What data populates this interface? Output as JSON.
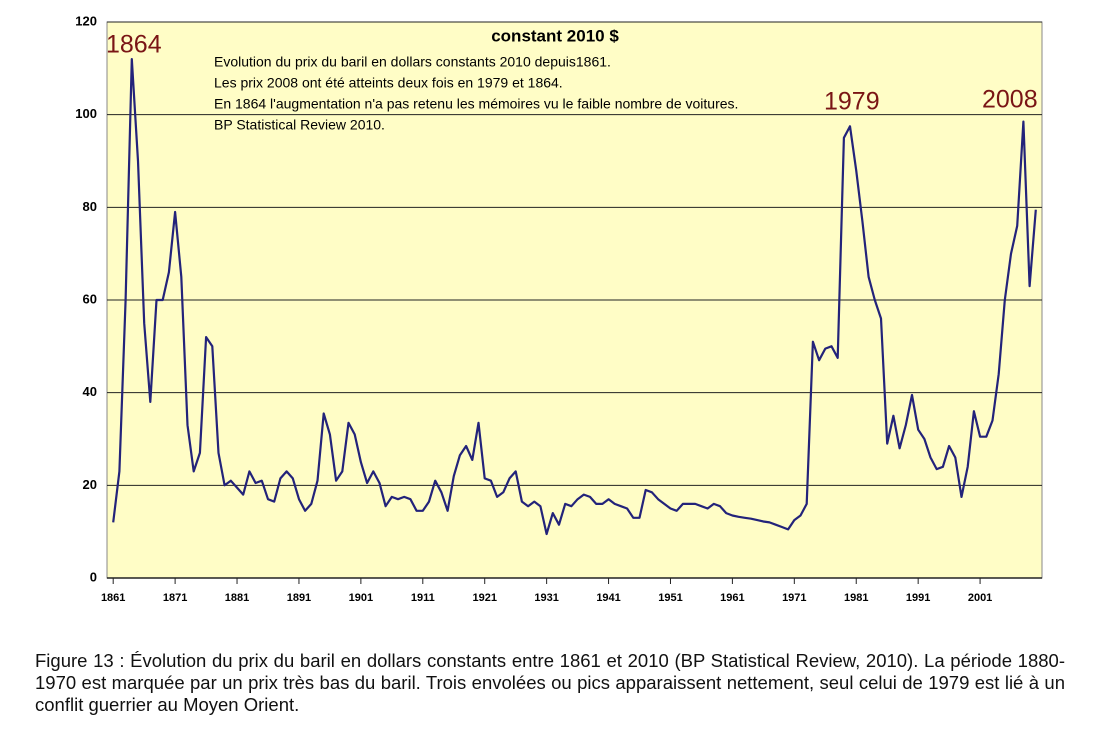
{
  "chart_data": {
    "type": "line",
    "title": "constant 2010 $",
    "annotations": [
      "Evolution du prix du baril en dollars constants 2010 depuis1861.",
      "Les prix 2008 ont été atteints deux fois en 1979 et 1864.",
      "En 1864 l'augmentation n'a pas retenu les mémoires vu le faible nombre de voitures.",
      "BP Statistical Review 2010."
    ],
    "peak_labels": [
      "1864",
      "1979",
      "2008"
    ],
    "x": [
      1861,
      1862,
      1863,
      1864,
      1865,
      1866,
      1867,
      1868,
      1869,
      1870,
      1871,
      1872,
      1873,
      1874,
      1875,
      1876,
      1877,
      1878,
      1879,
      1880,
      1881,
      1882,
      1883,
      1884,
      1885,
      1886,
      1887,
      1888,
      1889,
      1890,
      1891,
      1892,
      1893,
      1894,
      1895,
      1896,
      1897,
      1898,
      1899,
      1900,
      1901,
      1902,
      1903,
      1904,
      1905,
      1906,
      1907,
      1908,
      1909,
      1910,
      1911,
      1912,
      1913,
      1914,
      1915,
      1916,
      1917,
      1918,
      1919,
      1920,
      1921,
      1922,
      1923,
      1924,
      1925,
      1926,
      1927,
      1928,
      1929,
      1930,
      1931,
      1932,
      1933,
      1934,
      1935,
      1936,
      1937,
      1938,
      1939,
      1940,
      1941,
      1942,
      1943,
      1944,
      1945,
      1946,
      1947,
      1948,
      1949,
      1950,
      1951,
      1952,
      1953,
      1954,
      1955,
      1956,
      1957,
      1958,
      1959,
      1960,
      1961,
      1962,
      1963,
      1964,
      1965,
      1966,
      1967,
      1968,
      1969,
      1970,
      1971,
      1972,
      1973,
      1974,
      1975,
      1976,
      1977,
      1978,
      1979,
      1980,
      1981,
      1982,
      1983,
      1984,
      1985,
      1986,
      1987,
      1988,
      1989,
      1990,
      1991,
      1992,
      1993,
      1994,
      1995,
      1996,
      1997,
      1998,
      1999,
      2000,
      2001,
      2002,
      2003,
      2004,
      2005,
      2006,
      2007,
      2008,
      2009,
      2010
    ],
    "series": [
      {
        "name": "prix du baril",
        "color": "#23237a",
        "values": [
          12,
          23,
          60,
          112,
          90,
          55,
          38,
          60,
          60,
          66,
          79,
          65,
          33,
          23,
          27,
          52,
          50,
          27,
          20,
          21,
          19.5,
          18,
          23,
          20.5,
          21,
          17,
          16.5,
          21.5,
          23,
          21.5,
          17,
          14.5,
          16,
          21,
          35.5,
          31,
          21,
          23,
          33.5,
          31,
          25,
          20.5,
          23,
          20.5,
          15.5,
          17.5,
          17,
          17.5,
          17,
          14.5,
          14.5,
          16.5,
          21,
          18.5,
          14.5,
          22,
          26.5,
          28.5,
          25.5,
          33.5,
          21.5,
          21,
          17.5,
          18.5,
          21.5,
          23,
          16.5,
          15.5,
          16.5,
          15.5,
          9.5,
          14,
          11.5,
          16,
          15.5,
          17,
          18,
          17.5,
          16,
          16,
          17,
          16,
          15.5,
          15,
          13,
          13,
          19,
          18.5,
          17,
          16,
          15,
          14.5,
          16,
          16,
          16,
          15.5,
          15,
          16,
          15.5,
          14,
          13.5,
          13.2,
          13,
          12.8,
          12.5,
          12.2,
          12,
          11.5,
          11,
          10.5,
          12.5,
          13.5,
          16,
          51,
          47,
          49.5,
          50,
          47.5,
          95,
          97.5,
          88,
          77,
          65,
          60,
          56,
          29,
          35,
          28,
          33,
          39.5,
          32,
          30,
          26,
          23.5,
          24,
          28.5,
          26,
          17.5,
          24,
          36,
          30.5,
          30.5,
          34,
          44,
          60,
          70,
          76,
          98.5,
          63,
          79.5
        ]
      }
    ],
    "xlim": [
      1860,
      2011
    ],
    "xticks": [
      1861,
      1871,
      1881,
      1891,
      1901,
      1911,
      1921,
      1931,
      1941,
      1951,
      1961,
      1971,
      1981,
      1991,
      2001
    ],
    "ylim": [
      0,
      120
    ],
    "yticks": [
      0,
      20,
      40,
      60,
      80,
      100,
      120
    ],
    "grid": true,
    "background": "#fffdc6"
  },
  "caption": "Figure 13 : Évolution du prix du baril en dollars constants entre 1861 et 2010 (BP Statistical Review, 2010). La période 1880-1970 est marquée par un prix très bas du baril. Trois envolées ou pics apparaissent nettement, seul celui de 1979 est lié à un conflit guerrier au Moyen Orient."
}
